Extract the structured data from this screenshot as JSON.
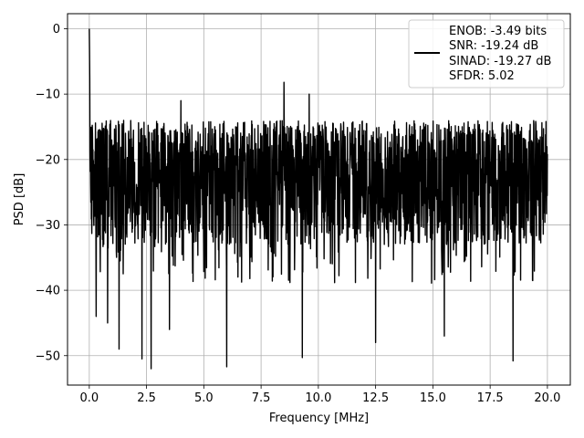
{
  "chart_data": {
    "type": "line",
    "xlabel": "Frequency [MHz]",
    "ylabel": "PSD [dB]",
    "xlim": [
      -0.95,
      21.0
    ],
    "ylim": [
      -54.5,
      2.3
    ],
    "xticks": [
      0.0,
      2.5,
      5.0,
      7.5,
      10.0,
      12.5,
      15.0,
      17.5,
      20.0
    ],
    "xtick_labels": [
      "0.0",
      "2.5",
      "5.0",
      "7.5",
      "10.0",
      "12.5",
      "15.0",
      "17.5",
      "20.0"
    ],
    "yticks": [
      0,
      -10,
      -20,
      -30,
      -40,
      -50
    ],
    "ytick_labels": [
      "0",
      "−10",
      "−20",
      "−30",
      "−40",
      "−50"
    ],
    "grid": true,
    "legend_position": "upper right",
    "series": [
      {
        "color": "#000000",
        "legend_lines": [
          "ENOB: -3.49 bits",
          "SNR: -19.24 dB",
          "SINAD: -19.27 dB",
          "SFDR: 5.02"
        ],
        "x_range": [
          0.0,
          20.0
        ],
        "peak": {
          "x": 0.0,
          "y": 0.0
        },
        "noise_floor_band": {
          "upper": [
            -15,
            -12
          ],
          "lower": [
            -35,
            -30
          ]
        },
        "notable_dips": [
          {
            "x": 0.3,
            "y": -44.0
          },
          {
            "x": 0.8,
            "y": -45.0
          },
          {
            "x": 1.3,
            "y": -49.0
          },
          {
            "x": 2.3,
            "y": -50.5
          },
          {
            "x": 2.7,
            "y": -52.0
          },
          {
            "x": 3.5,
            "y": -46.0
          },
          {
            "x": 6.0,
            "y": -51.7
          },
          {
            "x": 9.3,
            "y": -50.3
          },
          {
            "x": 12.5,
            "y": -48.0
          },
          {
            "x": 15.5,
            "y": -47.0
          },
          {
            "x": 18.5,
            "y": -50.8
          }
        ],
        "notable_peaks": [
          {
            "x": 8.5,
            "y": -8.2
          },
          {
            "x": 9.6,
            "y": -10.0
          },
          {
            "x": 4.0,
            "y": -11.0
          }
        ]
      }
    ]
  }
}
